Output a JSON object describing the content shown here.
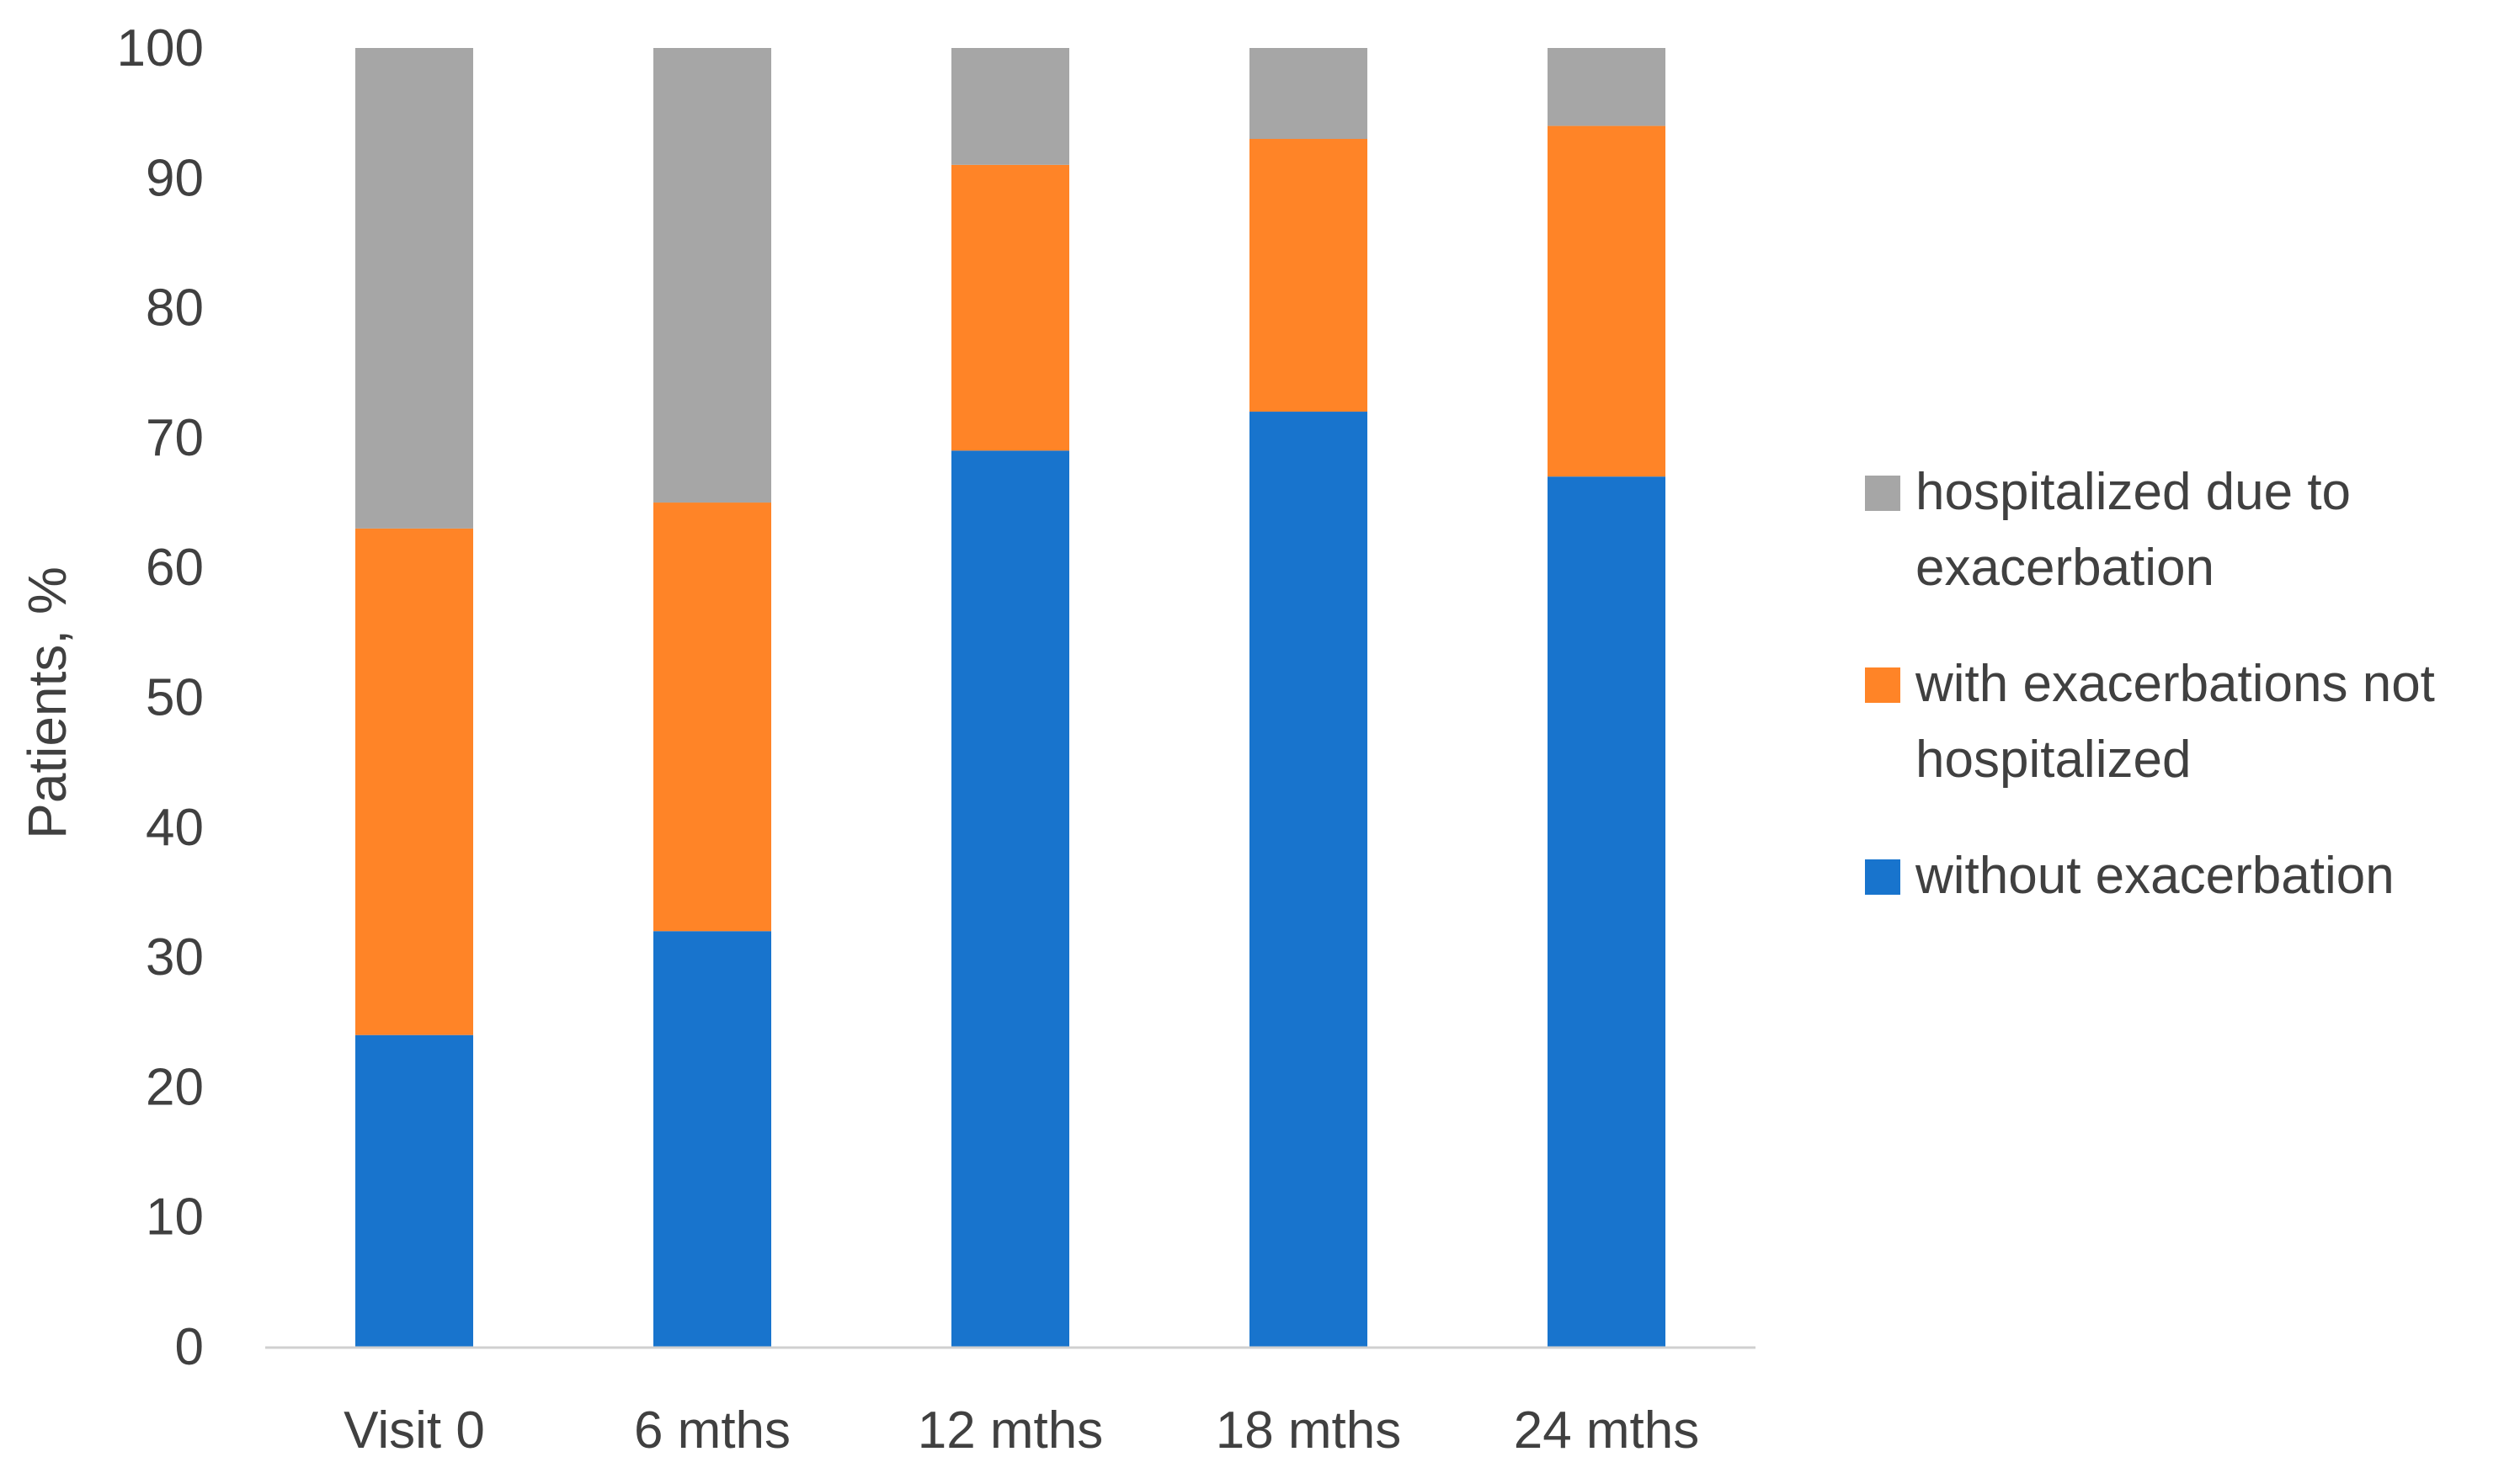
{
  "chart_data": {
    "type": "bar",
    "stacked": true,
    "categories": [
      "Visit 0",
      "6 mths",
      "12 mths",
      "18 mths",
      "24 mths"
    ],
    "series": [
      {
        "name": "without exacerbation",
        "color": "#1874CD",
        "values": [
          24,
          32,
          69,
          72,
          67
        ]
      },
      {
        "name": "with exacerbations not hospitalized",
        "color": "#FF8427",
        "values": [
          39,
          33,
          22,
          21,
          27
        ]
      },
      {
        "name": "hospitalized due to exacerbation",
        "color": "#A6A6A6",
        "values": [
          37,
          35,
          9,
          7,
          6
        ]
      }
    ],
    "legend_order": [
      2,
      1,
      0
    ],
    "legend_lines": [
      [
        "hospitalized due to",
        "exacerbation"
      ],
      [
        "with exacerbations not",
        "hospitalized"
      ],
      [
        "without exacerbation"
      ]
    ],
    "title": "",
    "xlabel": "",
    "ylabel": "Patients, %",
    "ylim": [
      0,
      100
    ],
    "yticks": [
      "0",
      "10",
      "20",
      "30",
      "40",
      "50",
      "60",
      "70",
      "80",
      "90",
      "100"
    ],
    "grid": false,
    "legend_position": "right"
  }
}
